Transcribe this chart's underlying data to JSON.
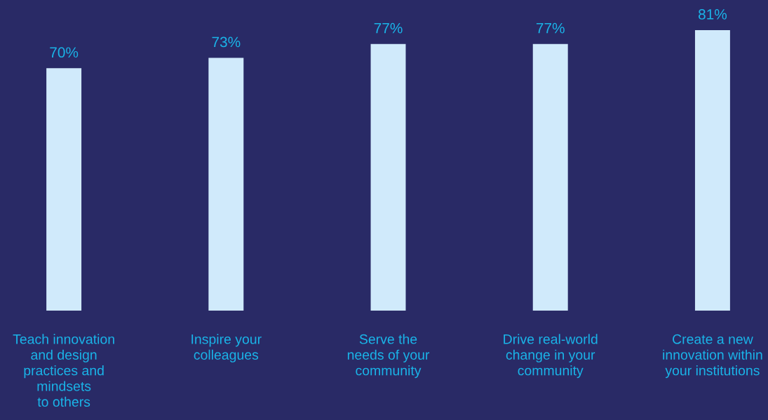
{
  "chart_data": {
    "type": "bar",
    "categories": [
      "Teach innovation\nand design\npractices and\nmindsets\nto others",
      "Inspire your\ncolleagues",
      "Serve the\nneeds of your\ncommunity",
      "Drive real-world\nchange in your\ncommunity",
      "Create a new\ninnovation within\nyour institutions"
    ],
    "values": [
      70,
      73,
      77,
      77,
      81
    ],
    "value_labels": [
      "70%",
      "73%",
      "77%",
      "77%",
      "81%"
    ],
    "color": "#d0eafb",
    "grid": false,
    "legend": false
  }
}
